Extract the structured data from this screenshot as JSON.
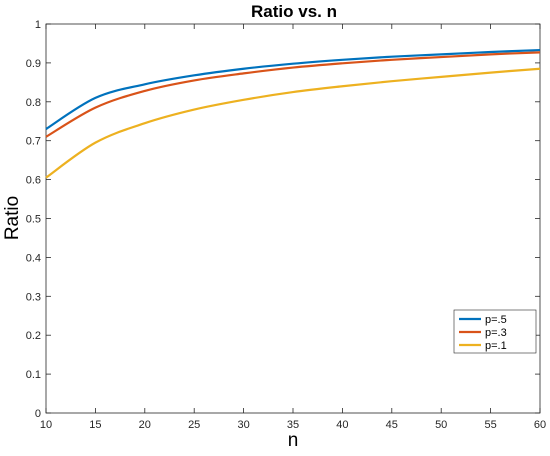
{
  "chart_data": {
    "type": "line",
    "title": "Ratio vs. n",
    "xlabel": "n",
    "ylabel": "Ratio",
    "xlim": [
      10,
      60
    ],
    "ylim": [
      0,
      1
    ],
    "xticks": [
      10,
      15,
      20,
      25,
      30,
      35,
      40,
      45,
      50,
      55,
      60
    ],
    "yticks": [
      0,
      0.1,
      0.2,
      0.3,
      0.4,
      0.5,
      0.6,
      0.7,
      0.8,
      0.9,
      1
    ],
    "ytick_labels": [
      "0",
      "0.1",
      "0.2",
      "0.3",
      "0.4",
      "0.5",
      "0.6",
      "0.7",
      "0.8",
      "0.9",
      "1"
    ],
    "grid": false,
    "legend_position": "bottom-right",
    "x": [
      10,
      15,
      20,
      25,
      30,
      35,
      40,
      45,
      50,
      55,
      60
    ],
    "series": [
      {
        "name": "p=.5",
        "color": "#0072bd",
        "values": [
          0.73,
          0.81,
          0.845,
          0.868,
          0.885,
          0.898,
          0.908,
          0.916,
          0.922,
          0.928,
          0.933
        ]
      },
      {
        "name": "p=.3",
        "color": "#d95319",
        "values": [
          0.71,
          0.785,
          0.828,
          0.855,
          0.873,
          0.888,
          0.899,
          0.908,
          0.915,
          0.922,
          0.927
        ]
      },
      {
        "name": "p=.1",
        "color": "#edb120",
        "values": [
          0.605,
          0.695,
          0.745,
          0.78,
          0.805,
          0.825,
          0.84,
          0.853,
          0.864,
          0.875,
          0.885
        ]
      }
    ]
  }
}
